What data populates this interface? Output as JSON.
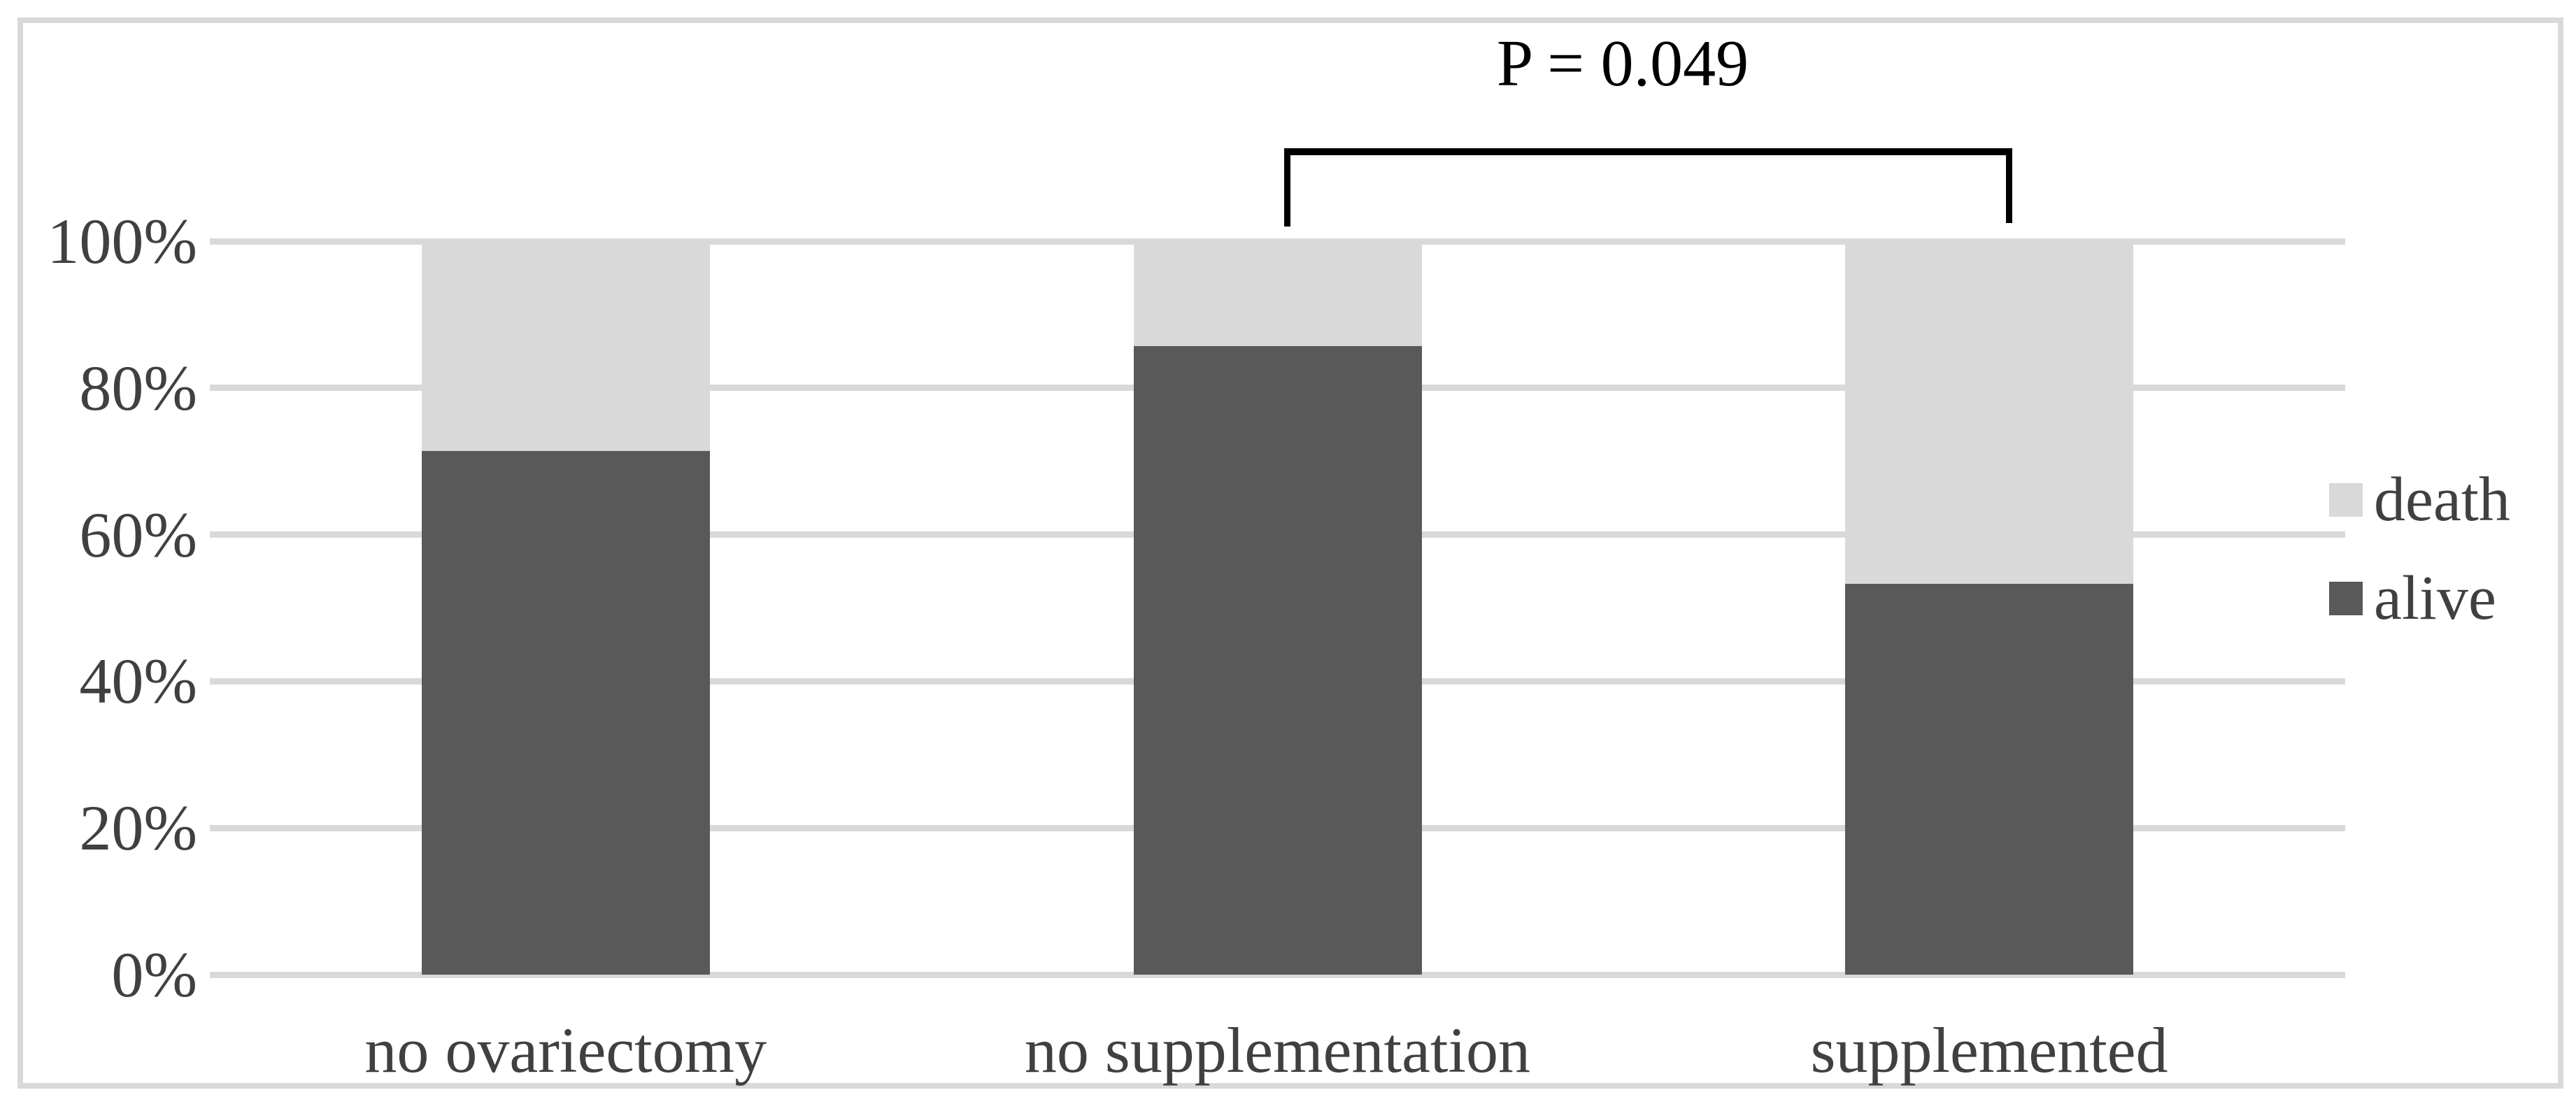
{
  "figure": {
    "background": "#ffffff",
    "frame_border_color": "#d9d9d9",
    "gridline_color": "#d9d9d9",
    "text_color": "#404040"
  },
  "annotation": {
    "p_value_label": "P = 0.049"
  },
  "legend": {
    "items": [
      {
        "label": "death",
        "color": "#d9d9d9"
      },
      {
        "label": "alive",
        "color": "#595959"
      }
    ]
  },
  "chart_data": {
    "type": "bar",
    "stacked": true,
    "percent_stacked": true,
    "title": "",
    "xlabel": "",
    "ylabel": "",
    "categories": [
      "no ovariectomy",
      "no supplementation",
      "supplemented"
    ],
    "series": [
      {
        "name": "alive",
        "color": "#595959",
        "values": [
          71.4,
          85.7,
          53.3
        ]
      },
      {
        "name": "death",
        "color": "#d9d9d9",
        "values": [
          28.6,
          14.3,
          46.7
        ]
      }
    ],
    "y_axis": {
      "min": 0,
      "max": 100,
      "unit": "percent",
      "ticks": [
        "0%",
        "20%",
        "40%",
        "60%",
        "80%",
        "100%"
      ]
    },
    "grid": true,
    "legend_position": "right",
    "significance_annotation": {
      "text": "P = 0.049",
      "between": [
        "no supplementation",
        "supplemented"
      ]
    }
  }
}
